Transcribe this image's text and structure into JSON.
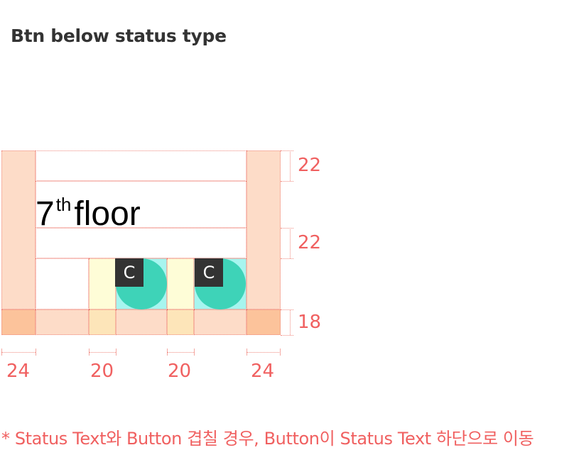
{
  "title": "Btn below status type",
  "floor": {
    "number": "7",
    "suffix": "th",
    "word": "floor"
  },
  "buttons": [
    {
      "badge": "C"
    },
    {
      "badge": "C"
    }
  ],
  "measurements": {
    "vertical": [
      "22",
      "22",
      "18"
    ],
    "horizontal": [
      "24",
      "20",
      "20",
      "24"
    ]
  },
  "note": "* Status Text와 Button 겹칠 경우, Button이 Status Text 하단으로 이동",
  "colors": {
    "margin": "#fddcc8",
    "corner": "#fcc39b",
    "gap": "#fefdd7",
    "button_zone": "#a7f5ef",
    "button_circle": "#3ed3b8",
    "annotation": "#f06060"
  }
}
